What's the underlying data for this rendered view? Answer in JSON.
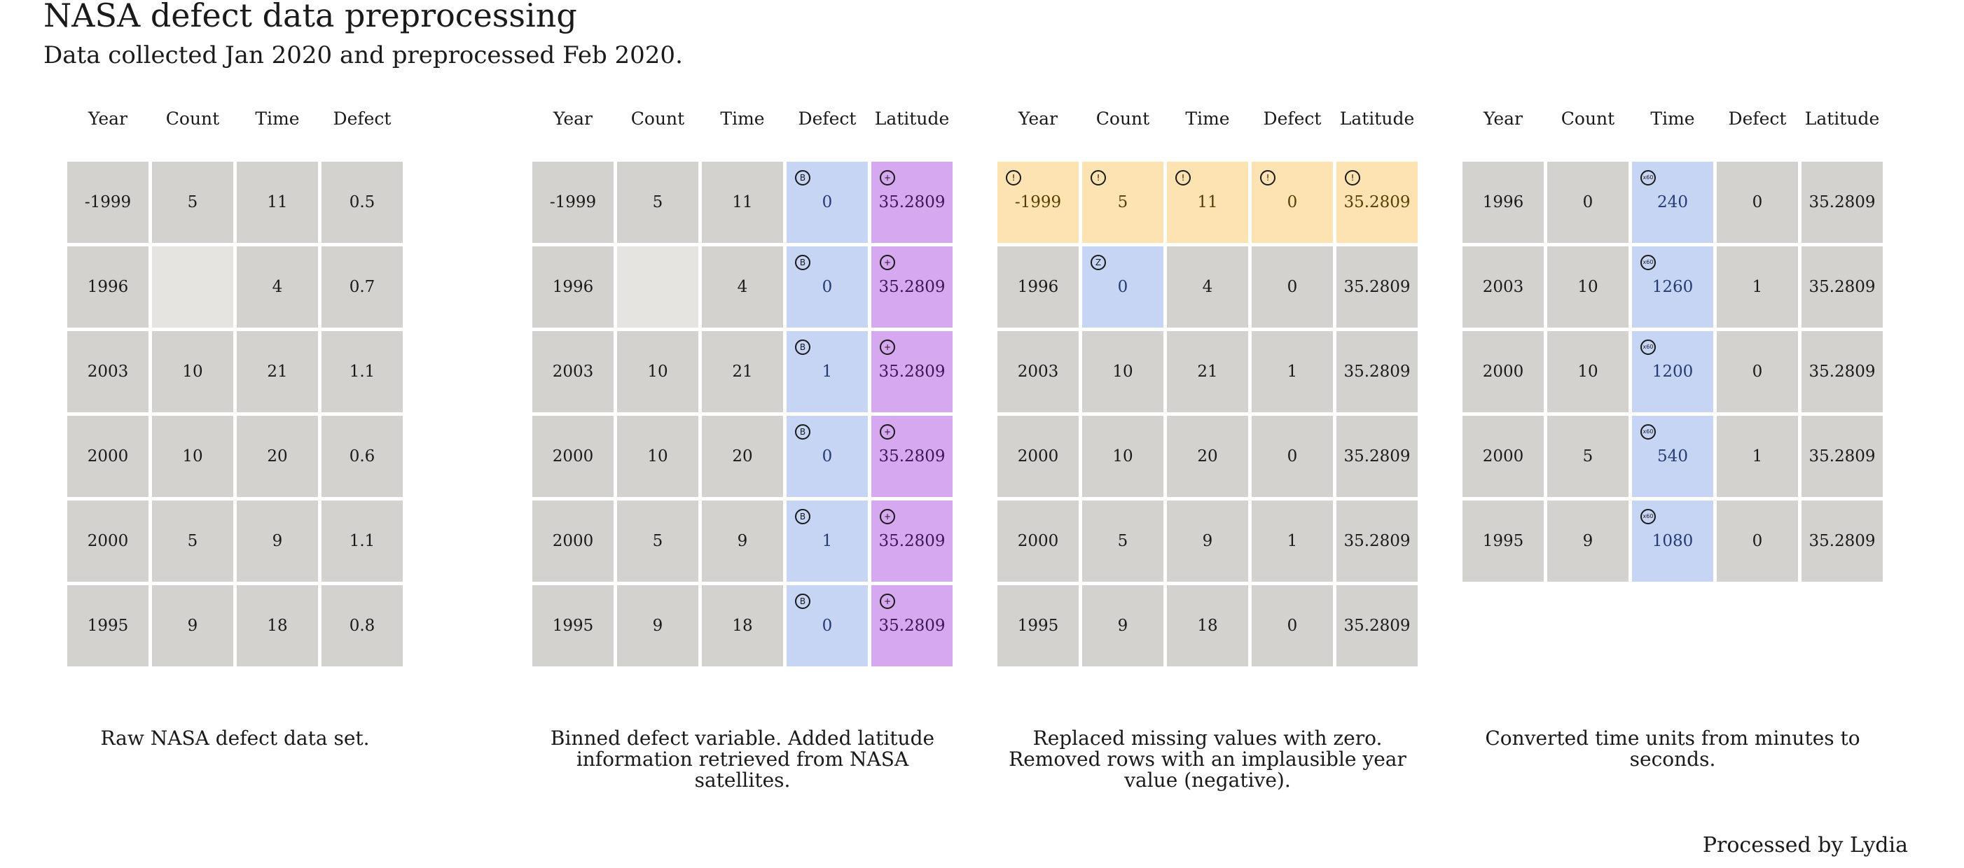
{
  "title": "NASA defect data preprocessing",
  "subtitle": "Data collected Jan 2020 and preprocessed Feb 2020.",
  "footer": "Processed by Lydia",
  "panels": [
    {
      "columns": [
        "Year",
        "Count",
        "Time",
        "Defect"
      ],
      "rows": [
        [
          {
            "v": "-1999"
          },
          {
            "v": "5"
          },
          {
            "v": "11"
          },
          {
            "v": "0.5"
          }
        ],
        [
          {
            "v": "1996"
          },
          {
            "v": "",
            "missing": true
          },
          {
            "v": "4"
          },
          {
            "v": "0.7"
          }
        ],
        [
          {
            "v": "2003"
          },
          {
            "v": "10"
          },
          {
            "v": "21"
          },
          {
            "v": "1.1"
          }
        ],
        [
          {
            "v": "2000"
          },
          {
            "v": "10"
          },
          {
            "v": "20"
          },
          {
            "v": "0.6"
          }
        ],
        [
          {
            "v": "2000"
          },
          {
            "v": "5"
          },
          {
            "v": "9"
          },
          {
            "v": "1.1"
          }
        ],
        [
          {
            "v": "1995"
          },
          {
            "v": "9"
          },
          {
            "v": "18"
          },
          {
            "v": "0.8"
          }
        ]
      ],
      "caption": "Raw NASA defect data set."
    },
    {
      "columns": [
        "Year",
        "Count",
        "Time",
        "Defect",
        "Latitude"
      ],
      "rows": [
        [
          {
            "v": "-1999"
          },
          {
            "v": "5"
          },
          {
            "v": "11"
          },
          {
            "v": "0",
            "tag": "bin",
            "badge": "B"
          },
          {
            "v": "35.2809",
            "tag": "lat",
            "badge": "+"
          }
        ],
        [
          {
            "v": "1996"
          },
          {
            "v": "",
            "missing": true
          },
          {
            "v": "4"
          },
          {
            "v": "0",
            "tag": "bin",
            "badge": "B"
          },
          {
            "v": "35.2809",
            "tag": "lat",
            "badge": "+"
          }
        ],
        [
          {
            "v": "2003"
          },
          {
            "v": "10"
          },
          {
            "v": "21"
          },
          {
            "v": "1",
            "tag": "bin",
            "badge": "B"
          },
          {
            "v": "35.2809",
            "tag": "lat",
            "badge": "+"
          }
        ],
        [
          {
            "v": "2000"
          },
          {
            "v": "10"
          },
          {
            "v": "20"
          },
          {
            "v": "0",
            "tag": "bin",
            "badge": "B"
          },
          {
            "v": "35.2809",
            "tag": "lat",
            "badge": "+"
          }
        ],
        [
          {
            "v": "2000"
          },
          {
            "v": "5"
          },
          {
            "v": "9"
          },
          {
            "v": "1",
            "tag": "bin",
            "badge": "B"
          },
          {
            "v": "35.2809",
            "tag": "lat",
            "badge": "+"
          }
        ],
        [
          {
            "v": "1995"
          },
          {
            "v": "9"
          },
          {
            "v": "18"
          },
          {
            "v": "0",
            "tag": "bin",
            "badge": "B"
          },
          {
            "v": "35.2809",
            "tag": "lat",
            "badge": "+"
          }
        ]
      ],
      "caption": "Binned defect variable. Added latitude information retrieved from NASA satellites."
    },
    {
      "columns": [
        "Year",
        "Count",
        "Time",
        "Defect",
        "Latitude"
      ],
      "rows": [
        [
          {
            "v": "-1999",
            "tag": "warn",
            "badge": "!"
          },
          {
            "v": "5",
            "tag": "warn",
            "badge": "!"
          },
          {
            "v": "11",
            "tag": "warn",
            "badge": "!"
          },
          {
            "v": "0",
            "tag": "warn",
            "badge": "!"
          },
          {
            "v": "35.2809",
            "tag": "warn",
            "badge": "!"
          }
        ],
        [
          {
            "v": "1996"
          },
          {
            "v": "0",
            "tag": "zero",
            "badge": "Z"
          },
          {
            "v": "4"
          },
          {
            "v": "0"
          },
          {
            "v": "35.2809"
          }
        ],
        [
          {
            "v": "2003"
          },
          {
            "v": "10"
          },
          {
            "v": "21"
          },
          {
            "v": "1"
          },
          {
            "v": "35.2809"
          }
        ],
        [
          {
            "v": "2000"
          },
          {
            "v": "10"
          },
          {
            "v": "20"
          },
          {
            "v": "0"
          },
          {
            "v": "35.2809"
          }
        ],
        [
          {
            "v": "2000"
          },
          {
            "v": "5"
          },
          {
            "v": "9"
          },
          {
            "v": "1"
          },
          {
            "v": "35.2809"
          }
        ],
        [
          {
            "v": "1995"
          },
          {
            "v": "9"
          },
          {
            "v": "18"
          },
          {
            "v": "0"
          },
          {
            "v": "35.2809"
          }
        ]
      ],
      "caption": "Replaced missing values with zero. Removed rows with an implausible year value (negative)."
    },
    {
      "columns": [
        "Year",
        "Count",
        "Time",
        "Defect",
        "Latitude"
      ],
      "rows": [
        [
          {
            "v": "1996"
          },
          {
            "v": "0"
          },
          {
            "v": "240",
            "tag": "conv",
            "badge": "x60"
          },
          {
            "v": "0"
          },
          {
            "v": "35.2809"
          }
        ],
        [
          {
            "v": "2003"
          },
          {
            "v": "10"
          },
          {
            "v": "1260",
            "tag": "conv",
            "badge": "x60"
          },
          {
            "v": "1"
          },
          {
            "v": "35.2809"
          }
        ],
        [
          {
            "v": "2000"
          },
          {
            "v": "10"
          },
          {
            "v": "1200",
            "tag": "conv",
            "badge": "x60"
          },
          {
            "v": "0"
          },
          {
            "v": "35.2809"
          }
        ],
        [
          {
            "v": "2000"
          },
          {
            "v": "5"
          },
          {
            "v": "540",
            "tag": "conv",
            "badge": "x60"
          },
          {
            "v": "1"
          },
          {
            "v": "35.2809"
          }
        ],
        [
          {
            "v": "1995"
          },
          {
            "v": "9"
          },
          {
            "v": "1080",
            "tag": "conv",
            "badge": "x60"
          },
          {
            "v": "0"
          },
          {
            "v": "35.2809"
          }
        ]
      ],
      "caption": "Converted time units from minutes to seconds."
    }
  ]
}
